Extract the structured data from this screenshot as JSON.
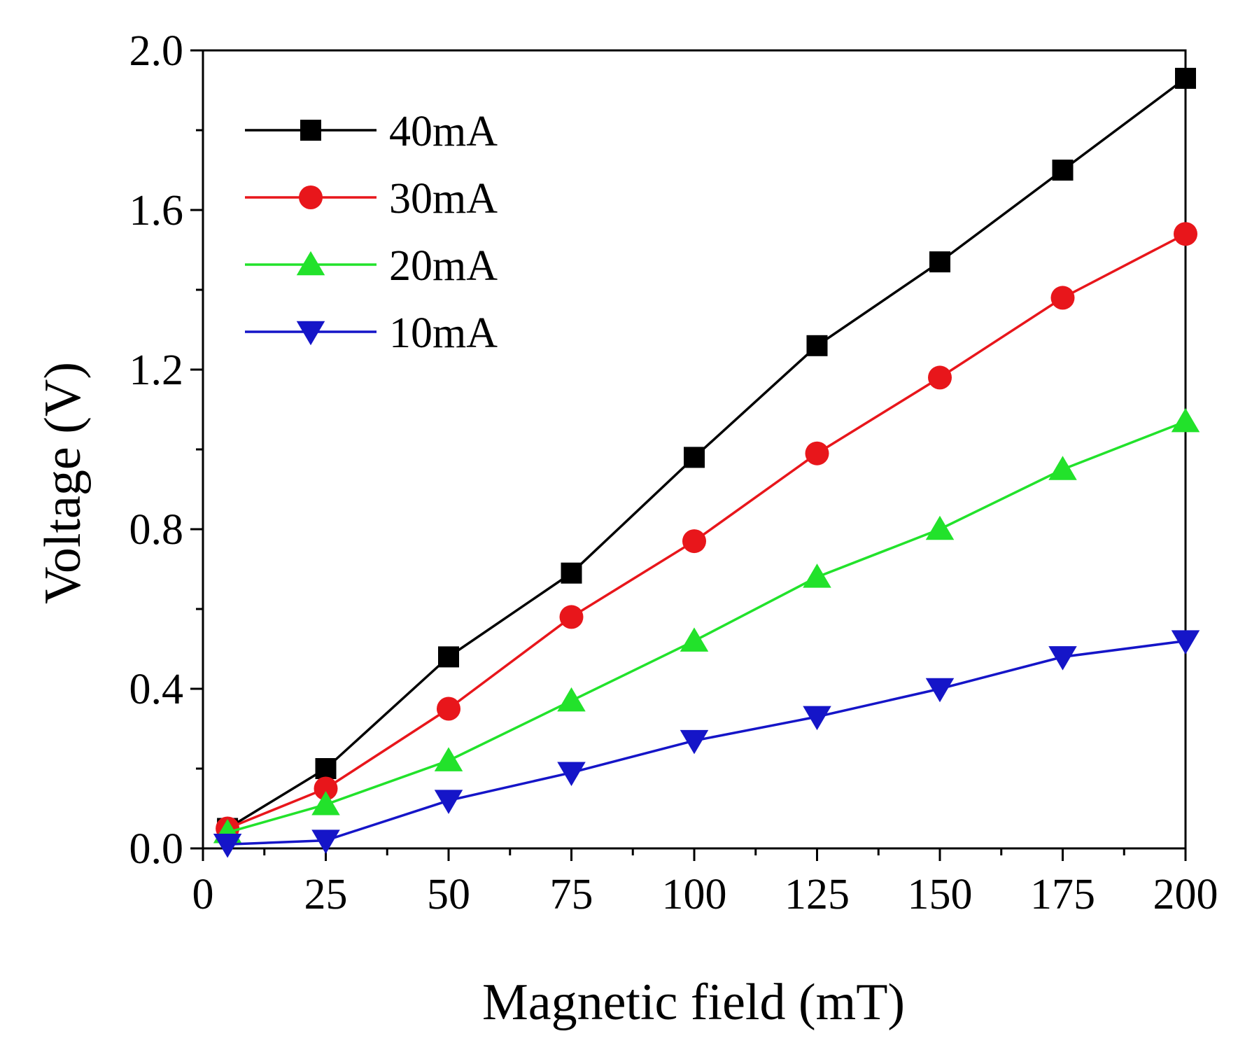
{
  "chart_data": {
    "type": "line",
    "title": "",
    "xlabel": "Magnetic field (mT)",
    "ylabel": "Voltage (V)",
    "xlim": [
      0,
      200
    ],
    "ylim": [
      0.0,
      2.0
    ],
    "xticks": [
      0,
      25,
      50,
      75,
      100,
      125,
      150,
      175,
      200
    ],
    "xtick_labels": [
      "0",
      "25",
      "50",
      "75",
      "100",
      "125",
      "150",
      "175",
      "200"
    ],
    "yticks": [
      0.0,
      0.4,
      0.8,
      1.2,
      1.6,
      2.0
    ],
    "ytick_labels": [
      "0.0",
      "0.4",
      "0.8",
      "1.2",
      "1.6",
      "2.0"
    ],
    "grid": false,
    "legend_position": "top-left",
    "x": [
      5,
      25,
      50,
      75,
      100,
      125,
      150,
      175,
      200
    ],
    "series": [
      {
        "name": "40mA",
        "color": "#000000",
        "marker": "square",
        "values": [
          0.05,
          0.2,
          0.48,
          0.69,
          0.98,
          1.26,
          1.47,
          1.7,
          1.93
        ]
      },
      {
        "name": "30mA",
        "color": "#e8161b",
        "marker": "circle",
        "values": [
          0.05,
          0.15,
          0.35,
          0.58,
          0.77,
          0.99,
          1.18,
          1.38,
          1.54
        ]
      },
      {
        "name": "20mA",
        "color": "#22e22b",
        "marker": "triangle-up",
        "values": [
          0.04,
          0.11,
          0.22,
          0.37,
          0.52,
          0.68,
          0.8,
          0.95,
          1.07
        ]
      },
      {
        "name": "10mA",
        "color": "#1515c8",
        "marker": "triangle-down",
        "values": [
          0.01,
          0.02,
          0.12,
          0.19,
          0.27,
          0.33,
          0.4,
          0.48,
          0.52
        ]
      }
    ]
  }
}
